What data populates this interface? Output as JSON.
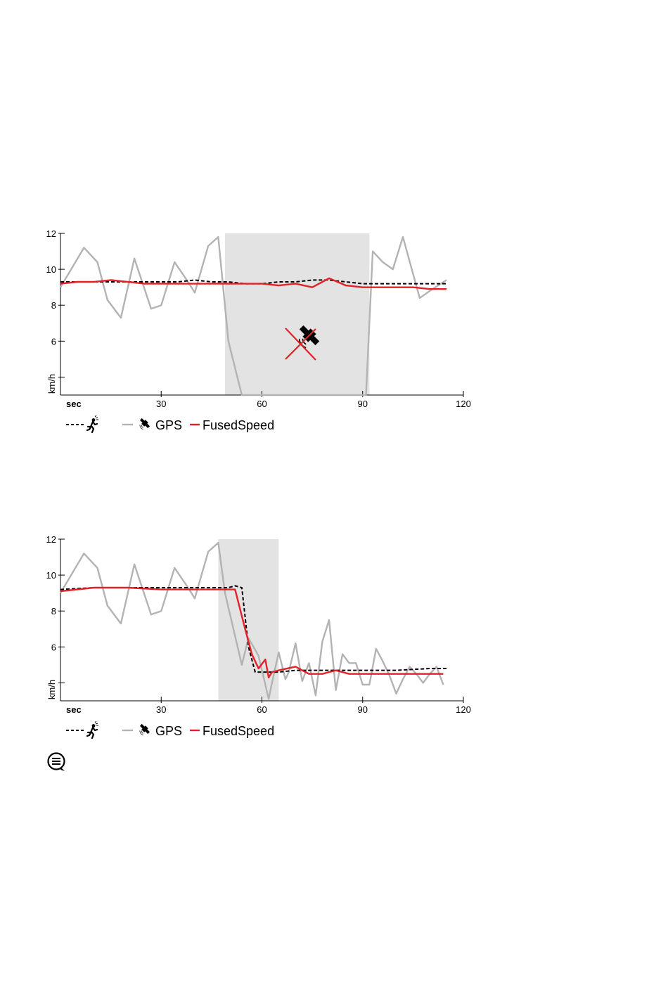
{
  "chart_data": [
    {
      "type": "line",
      "ylabel": "km/h",
      "xlabel": "sec",
      "xlim": [
        0,
        120
      ],
      "ylim": [
        3,
        12
      ],
      "xticks": [
        30,
        60,
        90,
        120
      ],
      "yticks": [
        4,
        6,
        8,
        10,
        12
      ],
      "ytick_labels": [
        "",
        "6",
        "8",
        "10",
        "12"
      ],
      "xtick_labels": [
        "30",
        "60",
        "90",
        "120"
      ],
      "shaded_region": [
        49,
        92
      ],
      "annotation": "gps-lost-icon",
      "legend": [
        "",
        "GPS",
        "FusedSpeed"
      ],
      "series": [
        {
          "name": "",
          "color": "#000000",
          "style": "dashed",
          "x": [
            0,
            5,
            10,
            15,
            20,
            25,
            30,
            35,
            40,
            45,
            50,
            55,
            60,
            65,
            70,
            75,
            80,
            85,
            90,
            95,
            100,
            105,
            110,
            115
          ],
          "y": [
            9.3,
            9.3,
            9.3,
            9.3,
            9.3,
            9.3,
            9.3,
            9.3,
            9.4,
            9.3,
            9.3,
            9.2,
            9.2,
            9.3,
            9.3,
            9.4,
            9.4,
            9.3,
            9.2,
            9.2,
            9.2,
            9.2,
            9.2,
            9.2
          ]
        },
        {
          "name": "GPS",
          "color": "#b3b3b3",
          "style": "solid",
          "x": [
            0,
            7,
            11,
            14,
            18,
            22,
            27,
            30,
            34,
            38,
            40,
            44,
            47,
            50,
            54,
            56,
            59,
            62,
            77,
            91,
            93,
            96,
            99,
            102,
            107,
            110,
            115
          ],
          "y": [
            9.0,
            11.2,
            10.4,
            8.3,
            7.3,
            10.6,
            7.8,
            8.0,
            10.4,
            9.3,
            8.7,
            11.3,
            11.8,
            6.0,
            3.0,
            3.0,
            3.0,
            3.0,
            3.0,
            3.0,
            11.0,
            10.4,
            10.0,
            11.8,
            8.4,
            8.8,
            9.4
          ]
        },
        {
          "name": "FusedSpeed",
          "color": "#e32128",
          "style": "solid",
          "x": [
            0,
            5,
            10,
            15,
            20,
            25,
            30,
            35,
            40,
            45,
            50,
            55,
            60,
            65,
            70,
            75,
            80,
            85,
            90,
            95,
            100,
            105,
            110,
            115
          ],
          "y": [
            9.2,
            9.3,
            9.3,
            9.4,
            9.3,
            9.2,
            9.2,
            9.2,
            9.2,
            9.2,
            9.2,
            9.2,
            9.2,
            9.1,
            9.2,
            9.0,
            9.5,
            9.1,
            9.0,
            9.0,
            9.0,
            9.0,
            8.9,
            8.9
          ]
        }
      ]
    },
    {
      "type": "line",
      "ylabel": "km/h",
      "xlabel": "sec",
      "xlim": [
        0,
        120
      ],
      "ylim": [
        3,
        12
      ],
      "xticks": [
        30,
        60,
        90,
        120
      ],
      "yticks": [
        4,
        6,
        8,
        10,
        12
      ],
      "ytick_labels": [
        "",
        "6",
        "8",
        "10",
        "12"
      ],
      "xtick_labels": [
        "30",
        "60",
        "90",
        "120"
      ],
      "shaded_region": [
        47,
        65
      ],
      "legend": [
        "",
        "GPS",
        "FusedSpeed"
      ],
      "series": [
        {
          "name": "",
          "color": "#000000",
          "style": "dashed",
          "x": [
            0,
            10,
            20,
            30,
            40,
            45,
            50,
            52,
            54,
            56,
            58,
            60,
            65,
            70,
            80,
            90,
            100,
            110,
            115
          ],
          "y": [
            9.2,
            9.3,
            9.3,
            9.3,
            9.3,
            9.3,
            9.3,
            9.4,
            9.3,
            6.0,
            4.6,
            4.6,
            4.6,
            4.7,
            4.7,
            4.7,
            4.7,
            4.8,
            4.8
          ]
        },
        {
          "name": "GPS",
          "color": "#b3b3b3",
          "style": "solid",
          "x": [
            0,
            7,
            11,
            14,
            18,
            22,
            27,
            30,
            34,
            38,
            40,
            44,
            47,
            49,
            54,
            56,
            59,
            62,
            63,
            65,
            67,
            68,
            70,
            72,
            74,
            76,
            78,
            80,
            82,
            84,
            86,
            88,
            90,
            92,
            94,
            96,
            98,
            100,
            102,
            104,
            106,
            108,
            110,
            112,
            114
          ],
          "y": [
            9.0,
            11.2,
            10.4,
            8.3,
            7.3,
            10.6,
            7.8,
            8.0,
            10.4,
            9.3,
            8.7,
            11.3,
            11.8,
            9.0,
            5.0,
            6.5,
            5.5,
            3.1,
            4.0,
            5.7,
            4.2,
            4.6,
            6.2,
            4.1,
            5.1,
            3.3,
            6.3,
            7.5,
            3.6,
            5.6,
            5.1,
            5.1,
            3.9,
            3.9,
            5.9,
            5.2,
            4.4,
            3.4,
            4.2,
            4.9,
            4.5,
            4.0,
            4.5,
            4.9,
            3.9
          ]
        },
        {
          "name": "FusedSpeed",
          "color": "#e32128",
          "style": "solid",
          "x": [
            0,
            10,
            20,
            30,
            40,
            45,
            50,
            52,
            55,
            57,
            59,
            61,
            62,
            63,
            65,
            70,
            74,
            78,
            82,
            86,
            90,
            100,
            110,
            114
          ],
          "y": [
            9.1,
            9.3,
            9.3,
            9.2,
            9.2,
            9.2,
            9.2,
            9.2,
            7.0,
            5.6,
            4.8,
            5.3,
            4.3,
            4.6,
            4.7,
            4.9,
            4.5,
            4.5,
            4.7,
            4.5,
            4.5,
            4.5,
            4.5,
            4.5
          ]
        }
      ]
    }
  ]
}
